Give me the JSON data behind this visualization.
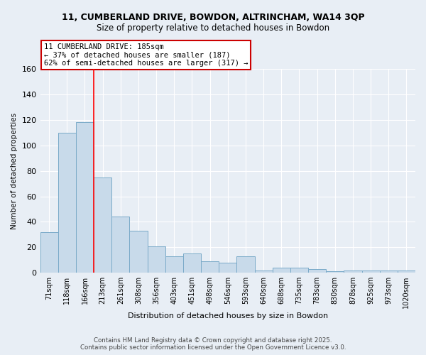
{
  "title1": "11, CUMBERLAND DRIVE, BOWDON, ALTRINCHAM, WA14 3QP",
  "title2": "Size of property relative to detached houses in Bowdon",
  "xlabel": "Distribution of detached houses by size in Bowdon",
  "ylabel": "Number of detached properties",
  "categories": [
    "71sqm",
    "118sqm",
    "166sqm",
    "213sqm",
    "261sqm",
    "308sqm",
    "356sqm",
    "403sqm",
    "451sqm",
    "498sqm",
    "546sqm",
    "593sqm",
    "640sqm",
    "688sqm",
    "735sqm",
    "783sqm",
    "830sqm",
    "878sqm",
    "925sqm",
    "973sqm",
    "1020sqm"
  ],
  "values": [
    32,
    110,
    118,
    75,
    44,
    33,
    21,
    13,
    15,
    9,
    8,
    13,
    2,
    4,
    4,
    3,
    1,
    2,
    2,
    2,
    2
  ],
  "bar_color": "#c8daea",
  "bar_edge_color": "#7aaac8",
  "annotation_title": "11 CUMBERLAND DRIVE: 185sqm",
  "annotation_line1": "← 37% of detached houses are smaller (187)",
  "annotation_line2": "62% of semi-detached houses are larger (317) →",
  "annotation_box_color": "#ffffff",
  "annotation_border_color": "#cc0000",
  "footer1": "Contains HM Land Registry data © Crown copyright and database right 2025.",
  "footer2": "Contains public sector information licensed under the Open Government Licence v3.0.",
  "ylim": [
    0,
    160
  ],
  "background_color": "#e8eef5",
  "plot_background": "#e8eef5"
}
